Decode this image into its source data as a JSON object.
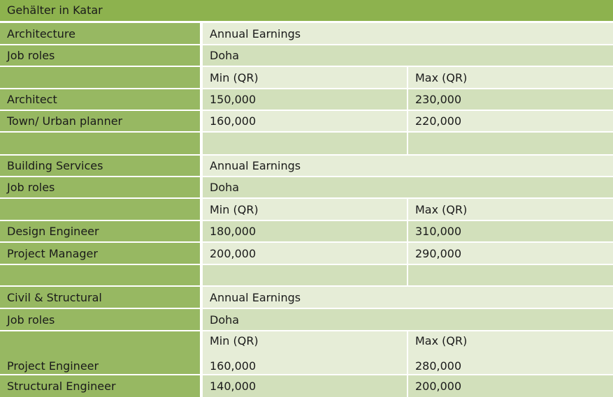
{
  "title": "Gehälter in Katar",
  "sections": [
    {
      "header": {
        "name": "Architecture",
        "col2": "Annual Earnings"
      },
      "roles_row": {
        "label": "Job roles",
        "col2": "Doha"
      },
      "minmax": {
        "min": "Min (QR)",
        "max": "Max (QR)"
      },
      "jobs": [
        {
          "role": "Architect",
          "min": "150,000",
          "max": "230,000"
        },
        {
          "role": "Town/ Urban planner",
          "min": "160,000",
          "max": "220,000"
        }
      ]
    },
    {
      "header": {
        "name": "Building Services",
        "col2": "Annual Earnings"
      },
      "roles_row": {
        "label": "Job roles",
        "col2": "Doha"
      },
      "minmax": {
        "min": "Min (QR)",
        "max": "Max (QR)"
      },
      "jobs": [
        {
          "role": "Design Engineer",
          "min": "180,000",
          "max": "310,000"
        },
        {
          "role": "Project Manager",
          "min": "200,000",
          "max": "290,000"
        }
      ]
    },
    {
      "header": {
        "name": "Civil & Structural",
        "col2": "Annual Earnings"
      },
      "roles_row": {
        "label": "Job roles",
        "col2": "Doha"
      },
      "minmax": {
        "min": "Min (QR)",
        "max": "Max (QR)"
      },
      "jobs": [
        {
          "role": "Project Engineer",
          "min": "160,000",
          "max": "280,000"
        },
        {
          "role": "Structural Engineer",
          "min": "140,000",
          "max": "200,000"
        }
      ]
    }
  ]
}
